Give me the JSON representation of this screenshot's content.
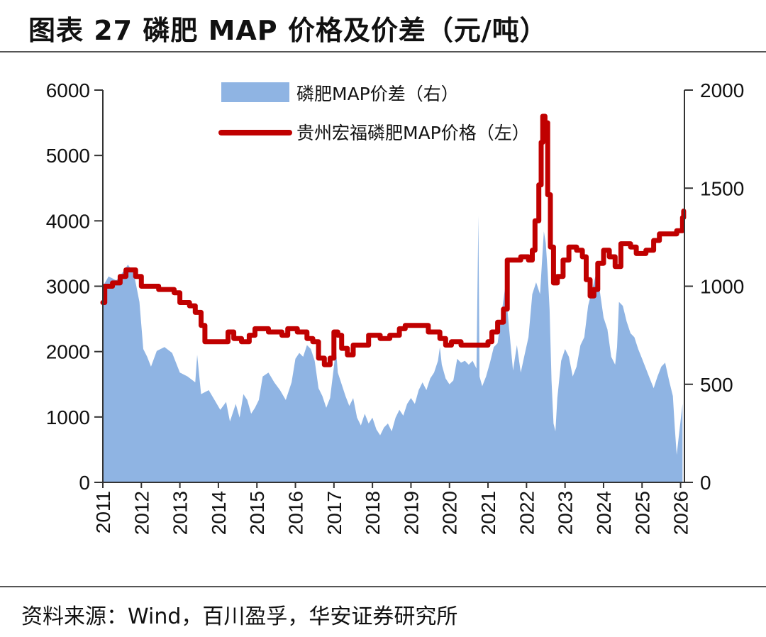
{
  "title": "图表 27 磷肥 MAP 价格及价差（元/吨）",
  "source": "资料来源：Wind，百川盈孚，华安证券研究所",
  "chart_data": {
    "type": "area+line",
    "series": [
      {
        "name": "磷肥MAP价差（右）",
        "kind": "area",
        "axis": "right",
        "color": "#8fb4e3",
        "points": [
          [
            2011.0,
            1000
          ],
          [
            2011.15,
            1050
          ],
          [
            2011.35,
            1030
          ],
          [
            2011.55,
            1080
          ],
          [
            2011.65,
            1110
          ],
          [
            2011.8,
            1070
          ],
          [
            2011.95,
            920
          ],
          [
            2012.05,
            680
          ],
          [
            2012.15,
            640
          ],
          [
            2012.25,
            590
          ],
          [
            2012.4,
            670
          ],
          [
            2012.6,
            690
          ],
          [
            2012.8,
            660
          ],
          [
            2013.0,
            560
          ],
          [
            2013.2,
            540
          ],
          [
            2013.4,
            510
          ],
          [
            2013.45,
            650
          ],
          [
            2013.55,
            450
          ],
          [
            2013.75,
            470
          ],
          [
            2013.9,
            420
          ],
          [
            2014.05,
            370
          ],
          [
            2014.2,
            410
          ],
          [
            2014.3,
            310
          ],
          [
            2014.45,
            400
          ],
          [
            2014.55,
            330
          ],
          [
            2014.65,
            450
          ],
          [
            2014.75,
            420
          ],
          [
            2014.85,
            350
          ],
          [
            2014.95,
            380
          ],
          [
            2015.05,
            420
          ],
          [
            2015.15,
            540
          ],
          [
            2015.3,
            560
          ],
          [
            2015.45,
            510
          ],
          [
            2015.6,
            470
          ],
          [
            2015.75,
            420
          ],
          [
            2015.9,
            510
          ],
          [
            2016.0,
            630
          ],
          [
            2016.1,
            660
          ],
          [
            2016.2,
            640
          ],
          [
            2016.3,
            700
          ],
          [
            2016.4,
            680
          ],
          [
            2016.5,
            620
          ],
          [
            2016.6,
            480
          ],
          [
            2016.7,
            440
          ],
          [
            2016.8,
            380
          ],
          [
            2016.9,
            430
          ],
          [
            2017.0,
            590
          ],
          [
            2017.05,
            690
          ],
          [
            2017.1,
            560
          ],
          [
            2017.2,
            500
          ],
          [
            2017.3,
            440
          ],
          [
            2017.4,
            390
          ],
          [
            2017.5,
            430
          ],
          [
            2017.6,
            330
          ],
          [
            2017.7,
            290
          ],
          [
            2017.8,
            350
          ],
          [
            2017.9,
            300
          ],
          [
            2018.0,
            330
          ],
          [
            2018.1,
            270
          ],
          [
            2018.2,
            240
          ],
          [
            2018.3,
            280
          ],
          [
            2018.4,
            300
          ],
          [
            2018.5,
            260
          ],
          [
            2018.6,
            330
          ],
          [
            2018.7,
            370
          ],
          [
            2018.8,
            340
          ],
          [
            2018.9,
            400
          ],
          [
            2019.0,
            430
          ],
          [
            2019.1,
            400
          ],
          [
            2019.2,
            470
          ],
          [
            2019.3,
            510
          ],
          [
            2019.4,
            470
          ],
          [
            2019.5,
            530
          ],
          [
            2019.6,
            560
          ],
          [
            2019.7,
            620
          ],
          [
            2019.75,
            690
          ],
          [
            2019.8,
            600
          ],
          [
            2019.9,
            530
          ],
          [
            2020.0,
            500
          ],
          [
            2020.1,
            520
          ],
          [
            2020.2,
            630
          ],
          [
            2020.3,
            610
          ],
          [
            2020.4,
            620
          ],
          [
            2020.5,
            600
          ],
          [
            2020.6,
            620
          ],
          [
            2020.7,
            580
          ],
          [
            2020.75,
            1360
          ],
          [
            2020.78,
            540
          ],
          [
            2020.85,
            490
          ],
          [
            2020.95,
            540
          ],
          [
            2021.05,
            610
          ],
          [
            2021.15,
            690
          ],
          [
            2021.25,
            710
          ],
          [
            2021.35,
            860
          ],
          [
            2021.45,
            1000
          ],
          [
            2021.55,
            780
          ],
          [
            2021.65,
            570
          ],
          [
            2021.75,
            700
          ],
          [
            2021.85,
            560
          ],
          [
            2021.95,
            650
          ],
          [
            2022.05,
            740
          ],
          [
            2022.15,
            960
          ],
          [
            2022.25,
            1020
          ],
          [
            2022.35,
            960
          ],
          [
            2022.45,
            1280
          ],
          [
            2022.5,
            1220
          ],
          [
            2022.55,
            1070
          ],
          [
            2022.6,
            880
          ],
          [
            2022.65,
            520
          ],
          [
            2022.7,
            300
          ],
          [
            2022.75,
            260
          ],
          [
            2022.8,
            430
          ],
          [
            2022.9,
            620
          ],
          [
            2023.0,
            680
          ],
          [
            2023.1,
            640
          ],
          [
            2023.2,
            540
          ],
          [
            2023.3,
            590
          ],
          [
            2023.4,
            700
          ],
          [
            2023.5,
            740
          ],
          [
            2023.6,
            900
          ],
          [
            2023.7,
            980
          ],
          [
            2023.8,
            1060
          ],
          [
            2023.9,
            980
          ],
          [
            2024.0,
            840
          ],
          [
            2024.1,
            780
          ],
          [
            2024.2,
            640
          ],
          [
            2024.3,
            600
          ],
          [
            2024.35,
            690
          ],
          [
            2024.4,
            920
          ],
          [
            2024.5,
            900
          ],
          [
            2024.6,
            820
          ],
          [
            2024.7,
            760
          ],
          [
            2024.8,
            740
          ],
          [
            2024.9,
            680
          ],
          [
            2025.0,
            630
          ],
          [
            2025.1,
            580
          ],
          [
            2025.2,
            530
          ],
          [
            2025.3,
            480
          ],
          [
            2025.4,
            540
          ],
          [
            2025.5,
            590
          ],
          [
            2025.6,
            610
          ],
          [
            2025.7,
            520
          ],
          [
            2025.8,
            440
          ],
          [
            2025.85,
            280
          ],
          [
            2025.9,
            140
          ],
          [
            2025.95,
            230
          ],
          [
            2026.05,
            400
          ]
        ]
      },
      {
        "name": "贵州宏福磷肥MAP价格（左）",
        "kind": "line",
        "axis": "left",
        "color": "#c00000",
        "points": [
          [
            2011.0,
            2750
          ],
          [
            2011.05,
            3000
          ],
          [
            2011.25,
            3050
          ],
          [
            2011.45,
            3150
          ],
          [
            2011.6,
            3250
          ],
          [
            2011.85,
            3150
          ],
          [
            2012.0,
            3000
          ],
          [
            2012.45,
            2950
          ],
          [
            2012.85,
            2900
          ],
          [
            2013.0,
            2750
          ],
          [
            2013.25,
            2700
          ],
          [
            2013.4,
            2600
          ],
          [
            2013.55,
            2400
          ],
          [
            2013.65,
            2150
          ],
          [
            2014.1,
            2150
          ],
          [
            2014.25,
            2300
          ],
          [
            2014.4,
            2200
          ],
          [
            2014.6,
            2150
          ],
          [
            2014.8,
            2250
          ],
          [
            2014.95,
            2350
          ],
          [
            2015.3,
            2300
          ],
          [
            2015.65,
            2250
          ],
          [
            2015.8,
            2350
          ],
          [
            2016.05,
            2300
          ],
          [
            2016.3,
            2200
          ],
          [
            2016.45,
            2150
          ],
          [
            2016.6,
            1900
          ],
          [
            2016.75,
            1800
          ],
          [
            2016.9,
            1900
          ],
          [
            2017.0,
            2300
          ],
          [
            2017.1,
            2250
          ],
          [
            2017.2,
            2050
          ],
          [
            2017.35,
            1950
          ],
          [
            2017.5,
            2100
          ],
          [
            2017.8,
            2100
          ],
          [
            2017.9,
            2250
          ],
          [
            2018.2,
            2200
          ],
          [
            2018.45,
            2250
          ],
          [
            2018.7,
            2350
          ],
          [
            2018.85,
            2400
          ],
          [
            2019.25,
            2400
          ],
          [
            2019.45,
            2300
          ],
          [
            2019.75,
            2200
          ],
          [
            2019.9,
            2100
          ],
          [
            2020.05,
            2150
          ],
          [
            2020.3,
            2100
          ],
          [
            2020.7,
            2100
          ],
          [
            2021.0,
            2150
          ],
          [
            2021.1,
            2300
          ],
          [
            2021.25,
            2450
          ],
          [
            2021.4,
            2650
          ],
          [
            2021.5,
            3400
          ],
          [
            2021.85,
            3450
          ],
          [
            2022.05,
            3400
          ],
          [
            2022.15,
            3550
          ],
          [
            2022.22,
            4000
          ],
          [
            2022.32,
            4550
          ],
          [
            2022.38,
            5200
          ],
          [
            2022.42,
            5600
          ],
          [
            2022.48,
            5500
          ],
          [
            2022.55,
            4400
          ],
          [
            2022.62,
            3600
          ],
          [
            2022.7,
            3050
          ],
          [
            2022.8,
            3150
          ],
          [
            2022.95,
            3400
          ],
          [
            2023.1,
            3600
          ],
          [
            2023.3,
            3550
          ],
          [
            2023.45,
            3450
          ],
          [
            2023.55,
            3100
          ],
          [
            2023.65,
            2850
          ],
          [
            2023.75,
            2950
          ],
          [
            2023.85,
            3350
          ],
          [
            2024.0,
            3550
          ],
          [
            2024.15,
            3450
          ],
          [
            2024.3,
            3300
          ],
          [
            2024.45,
            3650
          ],
          [
            2024.7,
            3600
          ],
          [
            2024.85,
            3500
          ],
          [
            2025.1,
            3550
          ],
          [
            2025.3,
            3700
          ],
          [
            2025.45,
            3800
          ],
          [
            2025.9,
            3850
          ],
          [
            2026.05,
            4050
          ],
          [
            2026.08,
            4150
          ]
        ]
      }
    ],
    "x_ticks": [
      "2011",
      "2012",
      "2013",
      "2014",
      "2015",
      "2016",
      "2017",
      "2018",
      "2019",
      "2020",
      "2021",
      "2022",
      "2023",
      "2024",
      "2025",
      "2026"
    ],
    "xlim": [
      2011,
      2026.1
    ],
    "y_left": {
      "ticks": [
        "0",
        "1000",
        "2000",
        "3000",
        "4000",
        "5000",
        "6000"
      ],
      "ylim": [
        0,
        6000
      ]
    },
    "y_right": {
      "ticks": [
        "0",
        "500",
        "1000",
        "1500",
        "2000"
      ],
      "ylim": [
        0,
        2000
      ]
    },
    "legend_position": "top-center",
    "grid": false
  }
}
